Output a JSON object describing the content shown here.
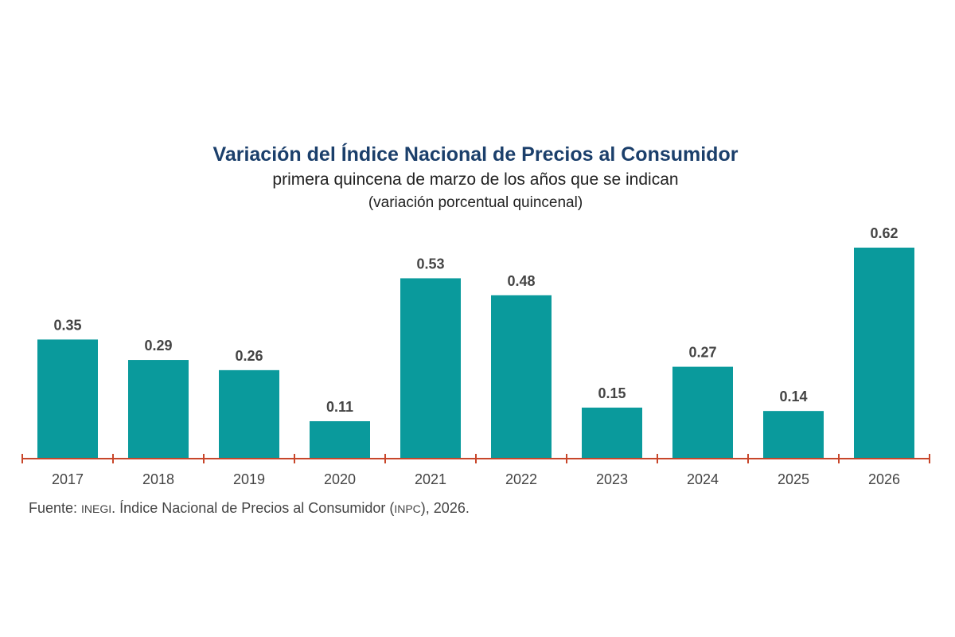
{
  "chart_data": {
    "type": "bar",
    "title": "Variación del Índice Nacional de Precios al Consumidor",
    "subtitle": "primera quincena de marzo de los años que se indican",
    "unit_label": "(variación porcentual quincenal)",
    "categories": [
      "2017",
      "2018",
      "2019",
      "2020",
      "2021",
      "2022",
      "2023",
      "2024",
      "2025",
      "2026"
    ],
    "values": [
      0.35,
      0.29,
      0.26,
      0.11,
      0.53,
      0.48,
      0.15,
      0.27,
      0.14,
      0.62
    ],
    "data_labels": [
      "0.35",
      "0.29",
      "0.26",
      "0.11",
      "0.53",
      "0.48",
      "0.15",
      "0.27",
      "0.14",
      "0.62"
    ],
    "ylim": [
      0,
      0.62
    ],
    "grid": false,
    "y_axis_shown": false,
    "colors": {
      "bar": "#0a9a9c",
      "axis": "#c8462a",
      "title": "#1b3f6b",
      "labels": "#444444"
    }
  },
  "footer": {
    "prefix": "Fuente: ",
    "org": "INEGI",
    "middle": ". Índice Nacional de Precios al Consumidor (",
    "abbr": "INPC",
    "suffix": "), 2026."
  }
}
